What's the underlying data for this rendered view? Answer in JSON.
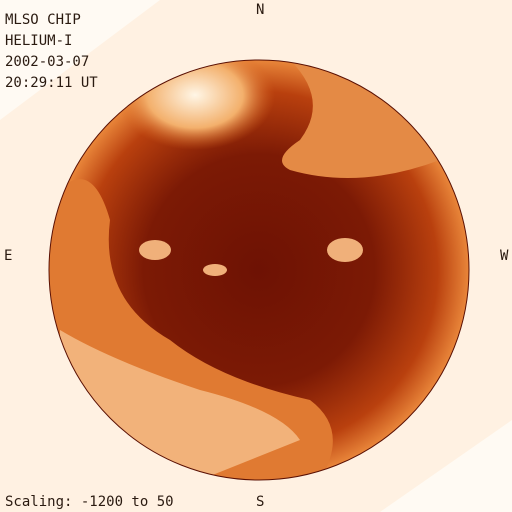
{
  "header": {
    "lines": [
      "MLSO CHIP",
      "HELIUM-I",
      "2002-03-07",
      "20:29:11 UT"
    ]
  },
  "compass": {
    "north": "N",
    "east": "E",
    "west": "W",
    "south": "S"
  },
  "footer": {
    "scaling": "Scaling: -1200 to 50"
  }
}
